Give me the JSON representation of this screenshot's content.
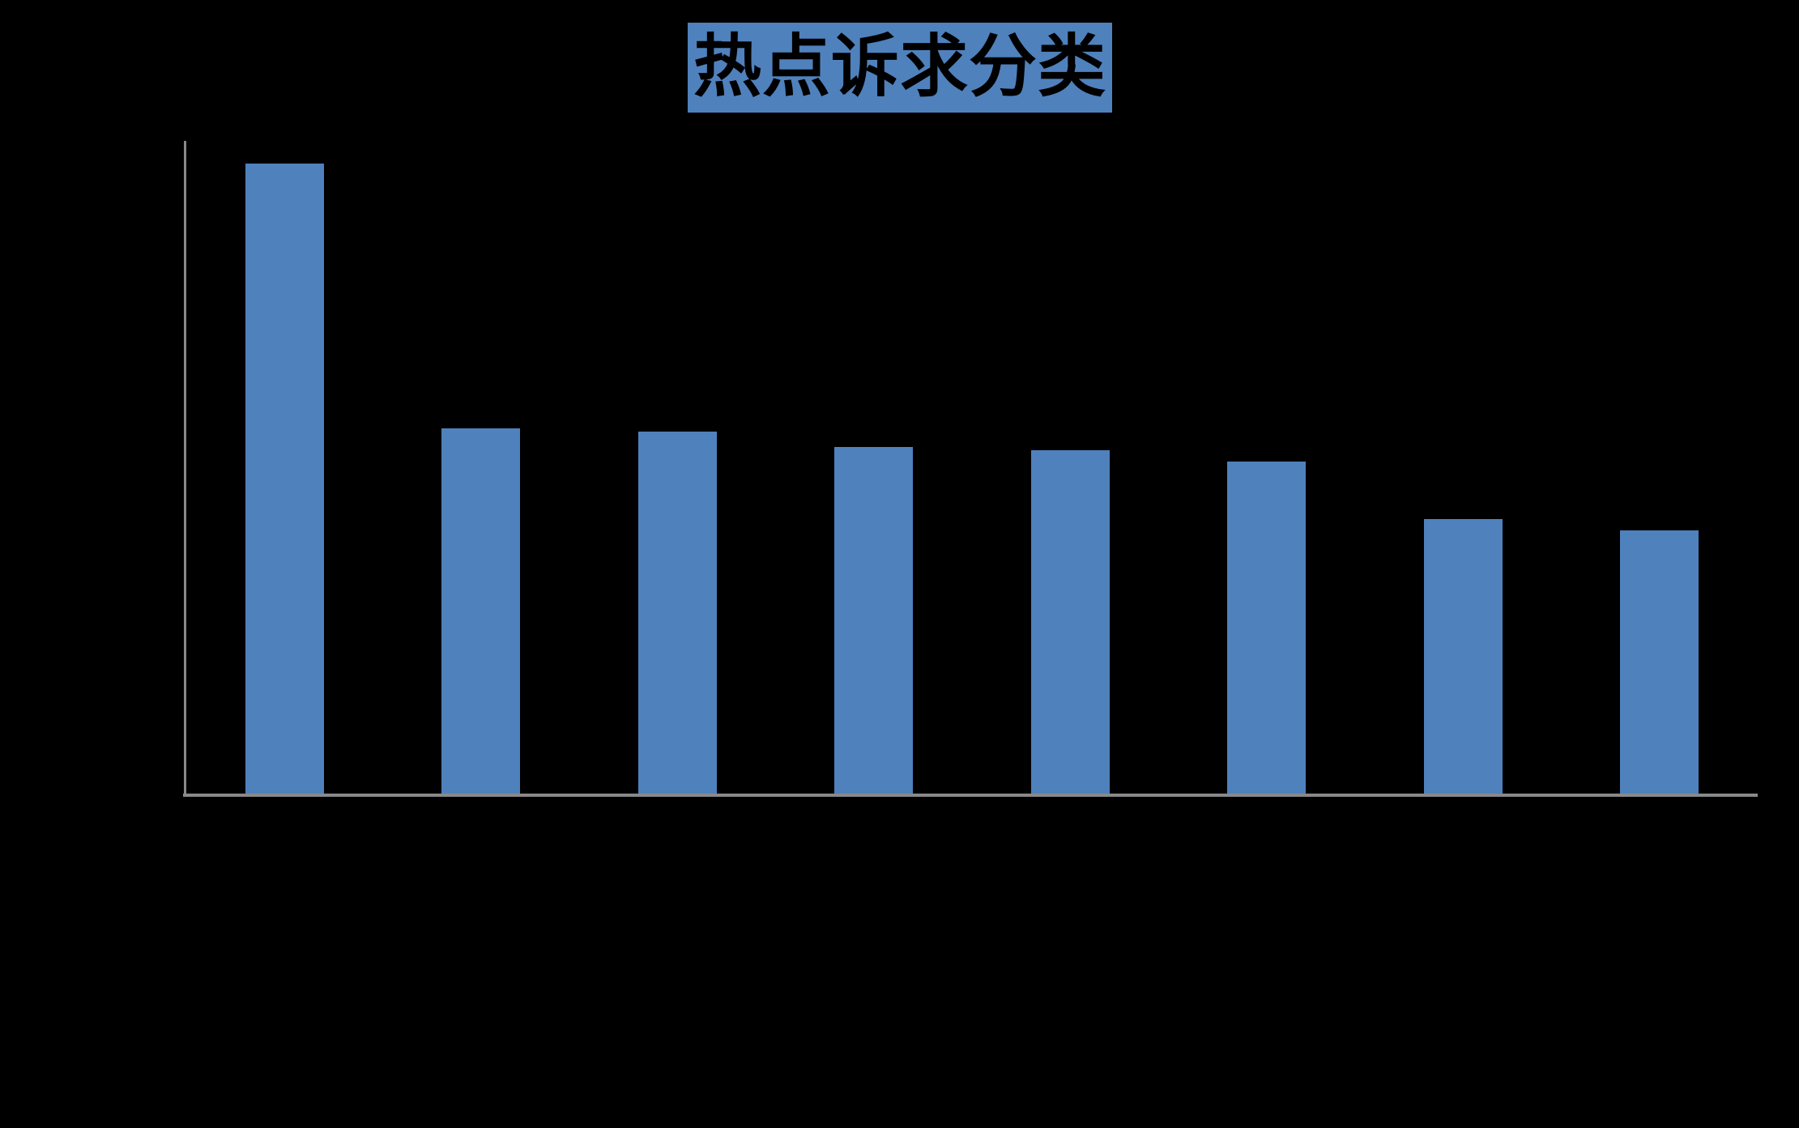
{
  "chart_data": {
    "type": "bar",
    "title": "热点诉求分类",
    "categories": [
      "",
      "",
      "",
      "",
      "",
      "",
      "",
      ""
    ],
    "values": [
      778,
      451,
      447,
      428,
      424,
      410,
      339,
      325
    ],
    "ylim": [
      0,
      806
    ],
    "xlabel": "",
    "ylabel": "",
    "grid": false,
    "legend": "none",
    "series_count": 1,
    "bar_count": 8,
    "colors": {
      "bar": "#4F81BD",
      "axis": "#898989",
      "title_background": "#4F81BD",
      "title_text": "#000000",
      "background": "#000000"
    }
  }
}
